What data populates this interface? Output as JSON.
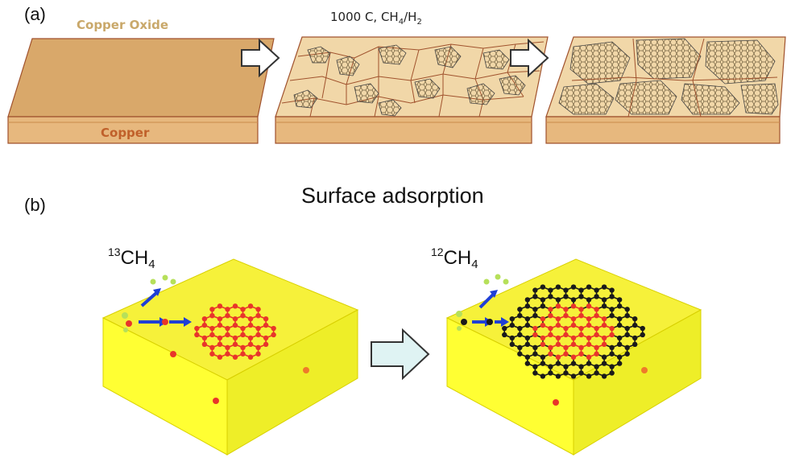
{
  "panel_a": {
    "label": "(a)",
    "oxide_label": "Copper Oxide",
    "copper_label": "Copper",
    "condition": {
      "prefix": "1000 C, CH",
      "sub1": "4",
      "mid": "/H",
      "sub2": "2"
    },
    "colors": {
      "copper_top": "#d9a86a",
      "copper_side": "#e7b87e",
      "grain_fill": "#f1d7a8",
      "boundary": "#a0522d",
      "oxide_text": "#c9a86a",
      "copper_text": "#c0602a"
    }
  },
  "panel_b": {
    "label": "(b)",
    "title": "Surface adsorption",
    "left_species": {
      "sup": "13",
      "main": "CH",
      "sub": "4"
    },
    "right_species": {
      "sup": "12",
      "main": "CH",
      "sub": "4"
    },
    "colors": {
      "substrate": "#ffff33",
      "c13": "#e8352a",
      "c12": "#1a1a1a",
      "h": "#b6e05a",
      "arrow": "#1f3fd6",
      "process_arrow": "#dff3f3"
    }
  }
}
